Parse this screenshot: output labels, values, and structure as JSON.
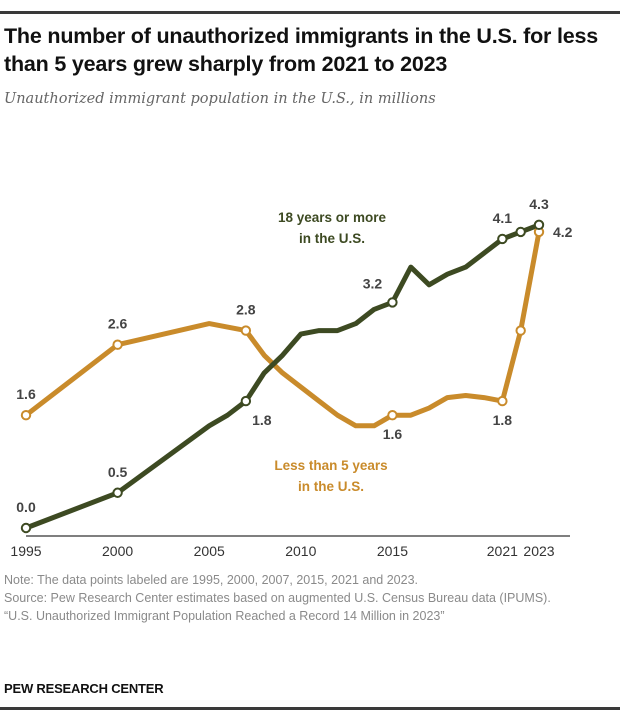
{
  "header": {
    "title": "The number of unauthorized immigrants in the U.S. for less than 5 years grew sharply from 2021 to 2023",
    "subtitle": "Unauthorized immigrant population in the U.S., in millions"
  },
  "footer": {
    "note": "Note: The data points labeled are 1995, 2000, 2007, 2015, 2021 and 2023.",
    "source": "Source: Pew Research Center estimates based on augmented U.S. Census Bureau data (IPUMS).",
    "report": "“U.S. Unauthorized Immigrant Population Reached a Record 14 Million in 2023”",
    "brand": "PEW RESEARCH CENTER"
  },
  "colors": {
    "long_term": "#3d4a22",
    "short_term": "#c98b2b",
    "axis": "#555555"
  },
  "chart_data": {
    "type": "line",
    "title": "The number of unauthorized immigrants in the U.S. for less than 5 years grew sharply from 2021 to 2023",
    "subtitle": "Unauthorized immigrant population in the U.S., in millions",
    "xlabel": "",
    "ylabel": "",
    "xlim": [
      1995,
      2023
    ],
    "ylim": [
      0,
      4.4
    ],
    "grid": false,
    "x_ticks": [
      1995,
      2000,
      2005,
      2010,
      2015,
      2021,
      2023
    ],
    "x_tick_labels": [
      "1995",
      "2000",
      "2005",
      "2010",
      "2015",
      "2021",
      "2023"
    ],
    "series": [
      {
        "name": "18 years or more in the U.S.",
        "label_lines": [
          "18 years or more",
          "in the U.S."
        ],
        "color": "#3d4a22",
        "points": [
          [
            1995,
            0.0
          ],
          [
            2000,
            0.5
          ],
          [
            2005,
            1.45
          ],
          [
            2006,
            1.6
          ],
          [
            2007,
            1.8
          ],
          [
            2008,
            2.2
          ],
          [
            2009,
            2.45
          ],
          [
            2010,
            2.75
          ],
          [
            2011,
            2.8
          ],
          [
            2012,
            2.8
          ],
          [
            2013,
            2.9
          ],
          [
            2014,
            3.1
          ],
          [
            2015,
            3.2
          ],
          [
            2016,
            3.7
          ],
          [
            2017,
            3.45
          ],
          [
            2018,
            3.6
          ],
          [
            2019,
            3.7
          ],
          [
            2020,
            3.9
          ],
          [
            2021,
            4.1
          ],
          [
            2022,
            4.2
          ],
          [
            2023,
            4.3
          ]
        ],
        "markers": [
          1995,
          2000,
          2007,
          2015,
          2021,
          2022,
          2023
        ],
        "labels": [
          {
            "x": 1995,
            "y": 0.0,
            "text": "0.0",
            "pos": "above"
          },
          {
            "x": 2000,
            "y": 0.5,
            "text": "0.5",
            "pos": "above"
          },
          {
            "x": 2007,
            "y": 1.8,
            "text": "1.8",
            "pos": "below-right"
          },
          {
            "x": 2015,
            "y": 3.2,
            "text": "3.2",
            "pos": "above-left"
          },
          {
            "x": 2021,
            "y": 4.1,
            "text": "4.1",
            "pos": "above"
          },
          {
            "x": 2023,
            "y": 4.3,
            "text": "4.3",
            "pos": "above"
          }
        ]
      },
      {
        "name": "Less than 5 years in the U.S.",
        "label_lines": [
          "Less than 5 years",
          "in the U.S."
        ],
        "color": "#c98b2b",
        "points": [
          [
            1995,
            1.6
          ],
          [
            2000,
            2.6
          ],
          [
            2005,
            2.9
          ],
          [
            2006,
            2.85
          ],
          [
            2007,
            2.8
          ],
          [
            2008,
            2.45
          ],
          [
            2009,
            2.2
          ],
          [
            2010,
            2.0
          ],
          [
            2011,
            1.8
          ],
          [
            2012,
            1.6
          ],
          [
            2013,
            1.45
          ],
          [
            2014,
            1.45
          ],
          [
            2015,
            1.6
          ],
          [
            2016,
            1.6
          ],
          [
            2017,
            1.7
          ],
          [
            2018,
            1.85
          ],
          [
            2019,
            1.88
          ],
          [
            2020,
            1.85
          ],
          [
            2021,
            1.8
          ],
          [
            2022,
            2.8
          ],
          [
            2023,
            4.2
          ]
        ],
        "markers": [
          1995,
          2000,
          2007,
          2015,
          2021,
          2022,
          2023
        ],
        "labels": [
          {
            "x": 1995,
            "y": 1.6,
            "text": "1.6",
            "pos": "above"
          },
          {
            "x": 2000,
            "y": 2.6,
            "text": "2.6",
            "pos": "above"
          },
          {
            "x": 2007,
            "y": 2.8,
            "text": "2.8",
            "pos": "above"
          },
          {
            "x": 2015,
            "y": 1.6,
            "text": "1.6",
            "pos": "below"
          },
          {
            "x": 2021,
            "y": 1.8,
            "text": "1.8",
            "pos": "below"
          },
          {
            "x": 2023,
            "y": 4.2,
            "text": "4.2",
            "pos": "right"
          }
        ]
      }
    ]
  }
}
